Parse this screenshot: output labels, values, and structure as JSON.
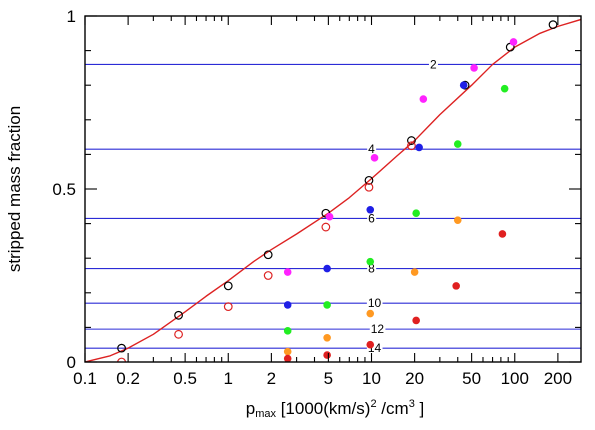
{
  "chart_data": {
    "type": "scatter",
    "title": "",
    "ylabel": "stripped mass fraction",
    "xlabel_parts": {
      "main": "p",
      "sub": "max",
      "rest1": " [1000(km/s)",
      "sup1": "2",
      "rest2": " /cm",
      "sup2": "3",
      "rest3": " ]"
    },
    "x_scale": "log",
    "xlim": [
      0.1,
      290
    ],
    "ylim": [
      0,
      1
    ],
    "x_ticks": [
      {
        "value": 0.1,
        "label": "0.1"
      },
      {
        "value": 0.2,
        "label": "0.2"
      },
      {
        "value": 0.5,
        "label": "0.5"
      },
      {
        "value": 1,
        "label": "1"
      },
      {
        "value": 2,
        "label": "2"
      },
      {
        "value": 5,
        "label": "5"
      },
      {
        "value": 10,
        "label": "10"
      },
      {
        "value": 20,
        "label": "20"
      },
      {
        "value": 50,
        "label": "50"
      },
      {
        "value": 100,
        "label": "100"
      },
      {
        "value": 200,
        "label": "200"
      }
    ],
    "y_ticks": [
      {
        "value": 0,
        "label": "0"
      },
      {
        "value": 0.5,
        "label": "0.5"
      },
      {
        "value": 1,
        "label": "1"
      }
    ],
    "y_zero_label": "0",
    "reference_lines": {
      "color": "#2b2bd6",
      "lines": [
        {
          "y": 0.86,
          "label": "2",
          "label_x": 27
        },
        {
          "y": 0.615,
          "label": "4",
          "label_x": 10
        },
        {
          "y": 0.415,
          "label": "6",
          "label_x": 10
        },
        {
          "y": 0.27,
          "label": "8",
          "label_x": 10
        },
        {
          "y": 0.17,
          "label": "10",
          "label_x": 10.5
        },
        {
          "y": 0.095,
          "label": "12",
          "label_x": 11
        },
        {
          "y": 0.04,
          "label": "14",
          "label_x": 10.5
        }
      ]
    },
    "fit_curve": {
      "color": "#dd2222",
      "x": [
        0.1,
        0.12,
        0.15,
        0.2,
        0.3,
        0.5,
        0.7,
        1,
        1.5,
        2,
        3,
        5,
        7,
        10,
        15,
        20,
        30,
        50,
        70,
        100,
        150,
        200,
        290
      ],
      "y": [
        0.0,
        0.008,
        0.018,
        0.04,
        0.08,
        0.145,
        0.19,
        0.235,
        0.29,
        0.325,
        0.37,
        0.43,
        0.475,
        0.53,
        0.595,
        0.64,
        0.715,
        0.8,
        0.86,
        0.91,
        0.95,
        0.97,
        0.99
      ]
    },
    "series": [
      {
        "name": "",
        "marker": "open-circle",
        "color": "#000000",
        "x": [
          0.18,
          0.45,
          1,
          1.9,
          4.8,
          9.6,
          19,
          45,
          93,
          185
        ],
        "y": [
          0.04,
          0.135,
          0.22,
          0.31,
          0.43,
          0.525,
          0.64,
          0.8,
          0.91,
          0.975
        ]
      },
      {
        "name": "",
        "marker": "open-circle",
        "color": "#dd2222",
        "x": [
          0.18,
          0.45,
          1,
          1.9,
          4.8,
          9.6,
          19
        ],
        "y": [
          0.0,
          0.08,
          0.16,
          0.25,
          0.39,
          0.505,
          0.625
        ]
      },
      {
        "name": "",
        "marker": "filled-circle",
        "color": "#ff22ff",
        "x": [
          2.6,
          5.1,
          10.5,
          23,
          52,
          98
        ],
        "y": [
          0.26,
          0.42,
          0.59,
          0.76,
          0.85,
          0.925
        ]
      },
      {
        "name": "",
        "marker": "filled-circle",
        "color": "#1f1fe6",
        "x": [
          2.6,
          4.9,
          9.8,
          21.5,
          44
        ],
        "y": [
          0.165,
          0.27,
          0.44,
          0.62,
          0.8
        ]
      },
      {
        "name": "",
        "marker": "filled-circle",
        "color": "#22ee22",
        "x": [
          2.6,
          4.9,
          9.8,
          20.5,
          40,
          85
        ],
        "y": [
          0.09,
          0.165,
          0.29,
          0.43,
          0.63,
          0.79
        ]
      },
      {
        "name": "",
        "marker": "filled-circle",
        "color": "#ff9922",
        "x": [
          2.6,
          4.9,
          9.8,
          20,
          40
        ],
        "y": [
          0.03,
          0.07,
          0.14,
          0.26,
          0.41
        ]
      },
      {
        "name": "",
        "marker": "filled-circle",
        "color": "#e02020",
        "x": [
          2.6,
          4.9,
          9.8,
          20.5,
          39,
          82
        ],
        "y": [
          0.01,
          0.02,
          0.05,
          0.12,
          0.22,
          0.37
        ]
      }
    ]
  }
}
